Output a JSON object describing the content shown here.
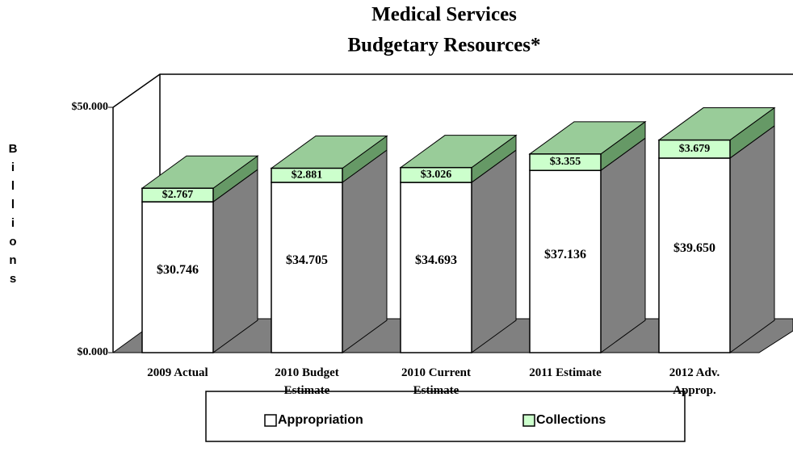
{
  "chart_data": {
    "type": "bar3d-stacked",
    "title": "Medical Services",
    "subtitle": "Budgetary Resources*",
    "y_label": "Billions",
    "categories": [
      "2009 Actual",
      "2010 Budget\nEstimate",
      "2010 Current\nEstimate",
      "2011 Estimate",
      "2012 Adv.\nApprop."
    ],
    "series": [
      {
        "name": "Appropriation",
        "color": "#ffffff",
        "side_color": "#808080",
        "values": [
          30.746,
          34.705,
          34.693,
          37.136,
          39.65
        ],
        "value_labels": [
          "$30.746",
          "$34.705",
          "$34.693",
          "$37.136",
          "$39.650"
        ]
      },
      {
        "name": "Collections",
        "color": "#ccffcc",
        "top_color": "#99cc99",
        "side_color": "#669966",
        "values": [
          2.767,
          2.881,
          3.026,
          3.355,
          3.679
        ],
        "value_labels": [
          "$2.767",
          "$2.881",
          "$3.026",
          "$3.355",
          "$3.679"
        ]
      }
    ],
    "ylim": [
      0,
      50
    ],
    "yticks": [
      {
        "value": 0,
        "label": "$0.000"
      },
      {
        "value": 50,
        "label": "$50.000"
      }
    ]
  }
}
